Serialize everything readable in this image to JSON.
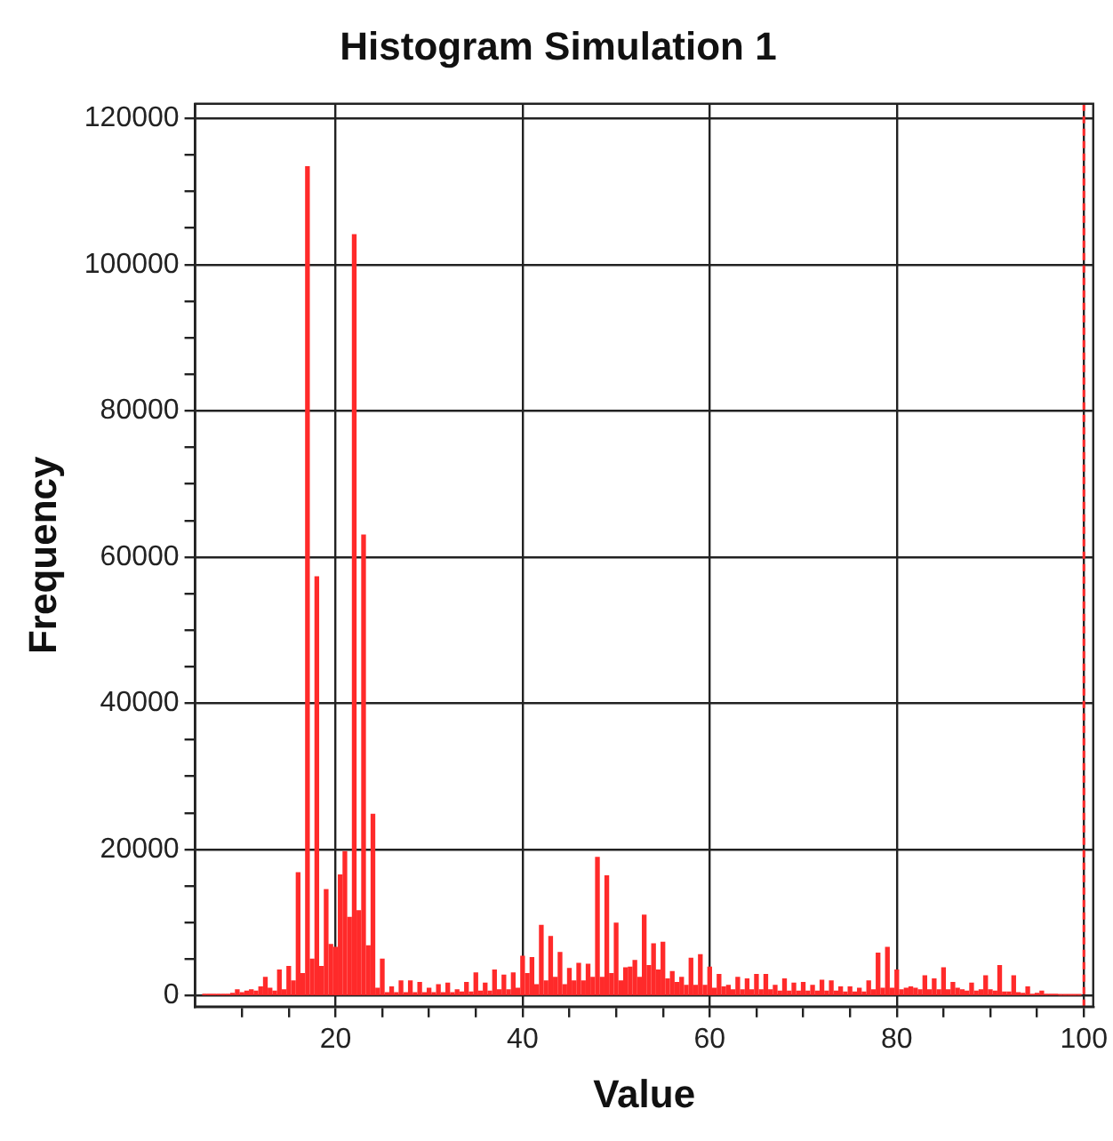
{
  "chart_data": {
    "type": "histogram",
    "title": "Histogram Simulation 1",
    "xlabel": "Value",
    "ylabel": "Frequency",
    "color": "#ff2a2a",
    "bins": [
      5.75,
      6.25,
      6.75,
      7.25,
      7.75,
      8.25,
      8.75,
      9.25,
      9.75,
      10.25,
      10.75,
      11.25,
      11.75,
      12.25,
      12.75,
      13.25,
      13.75,
      14.25,
      14.75,
      15.25,
      15.75,
      16.25,
      16.75,
      17.25,
      17.75,
      18.25,
      18.75,
      19.25,
      19.75,
      20.25,
      20.75,
      21.25,
      21.75,
      22.25,
      22.75,
      23.25,
      23.75,
      24.25,
      24.75,
      25.25,
      25.75,
      26.25,
      26.75,
      27.25,
      27.75,
      28.25,
      28.75,
      29.25,
      29.75,
      30.25,
      30.75,
      31.25,
      31.75,
      32.25,
      32.75,
      33.25,
      33.75,
      34.25,
      34.75,
      35.25,
      35.75,
      36.25,
      36.75,
      37.25,
      37.75,
      38.25,
      38.75,
      39.25,
      39.75,
      40.25,
      40.75,
      41.25,
      41.75,
      42.25,
      42.75,
      43.25,
      43.75,
      44.25,
      44.75,
      45.25,
      45.75,
      46.25,
      46.75,
      47.25,
      47.75,
      48.25,
      48.75,
      49.25,
      49.75,
      50.25,
      50.75,
      51.25,
      51.75,
      52.25,
      52.75,
      53.25,
      53.75,
      54.25,
      54.75,
      55.25,
      55.75,
      56.25,
      56.75,
      57.25,
      57.75,
      58.25,
      58.75,
      59.25,
      59.75,
      60.25,
      60.75,
      61.25,
      61.75,
      62.25,
      62.75,
      63.25,
      63.75,
      64.25,
      64.75,
      65.25,
      65.75,
      66.25,
      66.75,
      67.25,
      67.75,
      68.25,
      68.75,
      69.25,
      69.75,
      70.25,
      70.75,
      71.25,
      71.75,
      72.25,
      72.75,
      73.25,
      73.75,
      74.25,
      74.75,
      75.25,
      75.75,
      76.25,
      76.75,
      77.25,
      77.75,
      78.25,
      78.75,
      79.25,
      79.75,
      80.25,
      80.75,
      81.25,
      81.75,
      82.25,
      82.75,
      83.25,
      83.75,
      84.25,
      84.75,
      85.25,
      85.75,
      86.25,
      86.75,
      87.25,
      87.75,
      88.25,
      88.75,
      89.25,
      89.75,
      90.25,
      90.75,
      91.25,
      91.75,
      92.25,
      92.75,
      93.25,
      93.75,
      94.25,
      94.75,
      95.25,
      95.75,
      96.25,
      96.75,
      97.25,
      97.75,
      98.25,
      98.75,
      99.25,
      99.75
    ],
    "values": [
      200,
      200,
      200,
      200,
      200,
      200,
      300,
      800,
      400,
      600,
      800,
      600,
      1200,
      2500,
      1000,
      600,
      3500,
      800,
      4000,
      2000,
      16800,
      3000,
      113400,
      5000,
      57300,
      4000,
      14500,
      7000,
      6600,
      16500,
      19700,
      10700,
      104100,
      11600,
      63000,
      6800,
      24800,
      1000,
      5000,
      400,
      1200,
      400,
      2000,
      400,
      2000,
      400,
      1800,
      400,
      1000,
      400,
      1500,
      400,
      1700,
      400,
      800,
      500,
      1800,
      500,
      3100,
      600,
      1700,
      600,
      3500,
      800,
      2800,
      800,
      3100,
      1000,
      5400,
      3000,
      5200,
      1500,
      9600,
      2000,
      8100,
      2500,
      5900,
      1500,
      3700,
      2000,
      4400,
      2000,
      4300,
      2500,
      18900,
      2500,
      16400,
      3000,
      9900,
      2000,
      3800,
      3900,
      4800,
      2500,
      11000,
      4100,
      7100,
      3500,
      7300,
      2300,
      3300,
      1800,
      2500,
      1400,
      5100,
      1400,
      5600,
      1400,
      3900,
      1000,
      2900,
      1200,
      1400,
      800,
      2500,
      800,
      2300,
      800,
      2900,
      800,
      2900,
      800,
      1400,
      600,
      2300,
      600,
      1700,
      600,
      1800,
      600,
      1400,
      600,
      2100,
      600,
      2000,
      600,
      1200,
      500,
      1200,
      500,
      1000,
      500,
      2000,
      800,
      5800,
      1000,
      6600,
      1000,
      3500,
      800,
      1000,
      1200,
      1000,
      800,
      2700,
      800,
      2300,
      800,
      3800,
      800,
      1800,
      1000,
      800,
      600,
      1700,
      600,
      800,
      2700,
      800,
      600,
      4100,
      500,
      500,
      2700,
      400,
      300,
      1200,
      200,
      300,
      600,
      200,
      200,
      200,
      100,
      100,
      100,
      100,
      100
    ],
    "xlim": [
      5,
      101
    ],
    "xticks": [
      {
        "value": 10,
        "label": null
      },
      {
        "value": 15,
        "label": null
      },
      20,
      {
        "value": 25,
        "label": null
      },
      {
        "value": 30,
        "label": null
      },
      {
        "value": 35,
        "label": null
      },
      40,
      {
        "value": 45,
        "label": null
      },
      {
        "value": 50,
        "label": null
      },
      {
        "value": 55,
        "label": null
      },
      60,
      {
        "value": 65,
        "label": null
      },
      {
        "value": 70,
        "label": null
      },
      {
        "value": 75,
        "label": null
      },
      80,
      {
        "value": 85,
        "label": null
      },
      {
        "value": 90,
        "label": null
      },
      {
        "value": 95,
        "label": null
      },
      100
    ],
    "ylim": [
      -1500,
      122000
    ],
    "yticks": [
      0,
      {
        "value": 5000,
        "label": null
      },
      {
        "value": 10000,
        "label": null
      },
      {
        "value": 15000,
        "label": null
      },
      20000,
      {
        "value": 25000,
        "label": null
      },
      {
        "value": 30000,
        "label": null
      },
      {
        "value": 35000,
        "label": null
      },
      40000,
      {
        "value": 45000,
        "label": null
      },
      {
        "value": 50000,
        "label": null
      },
      {
        "value": 55000,
        "label": null
      },
      60000,
      {
        "value": 65000,
        "label": null
      },
      {
        "value": 70000,
        "label": null
      },
      {
        "value": 75000,
        "label": null
      },
      80000,
      {
        "value": 85000,
        "label": null
      },
      {
        "value": 90000,
        "label": null
      },
      {
        "value": 95000,
        "label": null
      },
      100000,
      {
        "value": 105000,
        "label": null
      },
      {
        "value": 110000,
        "label": null
      },
      {
        "value": 115000,
        "label": null
      },
      120000
    ],
    "grid": true,
    "ref_lines": [
      {
        "axis": "x",
        "value": 100,
        "color": "#ff2a2a",
        "line_style": "dashed"
      }
    ]
  }
}
